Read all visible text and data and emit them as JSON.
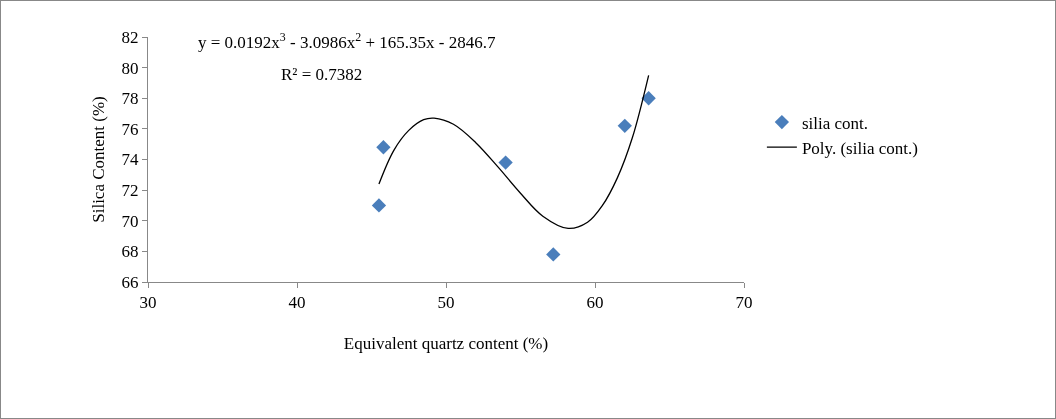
{
  "chart_data": {
    "type": "scatter",
    "xlabel": "Equivalent quartz content (%)",
    "ylabel": "Silica Content (%)",
    "x": [
      45.5,
      45.8,
      54.0,
      57.2,
      62.0,
      63.6
    ],
    "series": [
      {
        "name": "silia cont.",
        "color": "#4a7ebb",
        "values": [
          71.0,
          74.8,
          73.8,
          67.8,
          76.2,
          78.0
        ]
      },
      {
        "type": "line",
        "marker": "none",
        "name": "Poly. (silia cont.)",
        "color": "#000000",
        "x": [
          45.5,
          46.5,
          47.5,
          48.5,
          49.2,
          50.5,
          52,
          53.5,
          55,
          56.5,
          58.2,
          59.5,
          60.5,
          61.5,
          62.5,
          63.6
        ],
        "values": [
          72.4,
          74.6,
          75.9,
          76.6,
          76.7,
          76.3,
          75.1,
          73.5,
          71.8,
          70.3,
          69.5,
          69.9,
          71.0,
          72.8,
          75.4,
          79.5
        ]
      }
    ],
    "annotations": [
      "y = 0.0192x$^{3}$ - 3.0986x$^{2}$ + 165.35x - 2846.7",
      "R² = 0.7382"
    ],
    "xlim": [
      30,
      70
    ],
    "xticks": [
      30,
      40,
      50,
      60,
      70
    ],
    "ylim": [
      66,
      82
    ],
    "yticks": [
      66,
      68,
      70,
      72,
      74,
      76,
      78,
      80,
      82
    ],
    "grid": false,
    "legend": "right",
    "marker": "diamond"
  }
}
